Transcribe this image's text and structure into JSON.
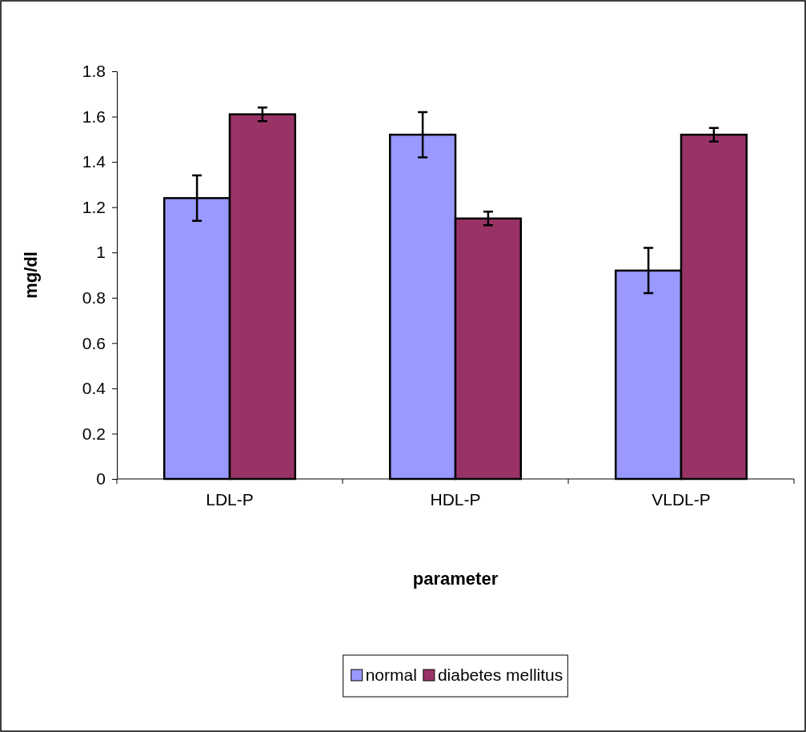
{
  "chart_data": {
    "type": "bar",
    "xlabel": "parameter",
    "ylabel": "mg/dl",
    "categories": [
      "LDL-P",
      "HDL-P",
      "VLDL-P"
    ],
    "series": [
      {
        "name": "normal",
        "color": "#9999ff",
        "values": [
          1.24,
          1.52,
          0.92
        ],
        "errors": [
          0.1,
          0.1,
          0.1
        ]
      },
      {
        "name": "diabetes mellitus",
        "color": "#993366",
        "values": [
          1.61,
          1.15,
          1.52
        ],
        "errors": [
          0.03,
          0.03,
          0.03
        ]
      }
    ],
    "ylim": [
      0,
      1.8
    ],
    "yticks": [
      0,
      0.2,
      0.4,
      0.6,
      0.8,
      1,
      1.2,
      1.4,
      1.6,
      1.8
    ],
    "grid": false,
    "legend": "bottom"
  }
}
